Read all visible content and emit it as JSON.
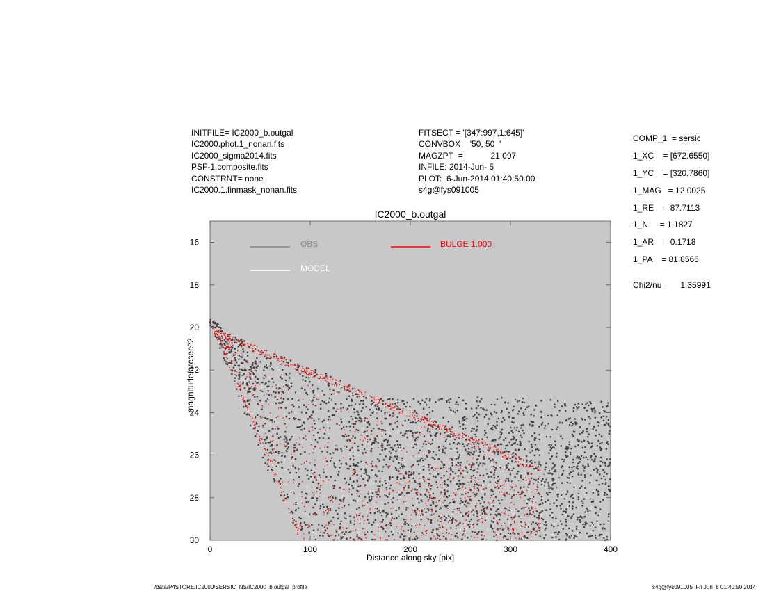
{
  "header_left": [
    "INITFILE= IC2000_b.outgal",
    "IC2000.phot.1_nonan.fits",
    "IC2000_sigma2014.fits",
    "PSF-1.composite.fits",
    "CONSTRNT= none",
    "IC2000.1.finmask_nonan.fits"
  ],
  "header_mid": [
    "FITSECT = '[347:997,1:645]'",
    "CONVBOX = '50, 50  '",
    "MAGZPT  =            21.097",
    "INFILE: 2014-Jun- 5",
    "PLOT:  6-Jun-2014 01:40:50.00",
    "s4g@fys091005"
  ],
  "params": [
    "COMP_1  = sersic",
    "1_XC    = [672.6550]",
    "1_YC    = [320.7860]",
    "1_MAG   = 12.0025",
    "1_RE    = 87.7113",
    "1_N     = 1.1827",
    "1_AR    = 0.1718",
    "1_PA    = 81.8566"
  ],
  "chi2": "Chi2/nu=      1.35991",
  "footer_left": "/data/P4STORE/IC2000/SERSIC_NS/IC2000_b.outgal_profile",
  "footer_right": "s4g@fys091005  Fri Jun  6 01:40:50 2014",
  "chart_data": {
    "type": "scatter",
    "title": "IC2000_b.outgal",
    "xlabel": "Distance along sky [pix]",
    "ylabel": "magnitude/arcsec^2",
    "xlim": [
      0,
      400
    ],
    "ylim": [
      30,
      15
    ],
    "x_ticks": [
      0,
      100,
      200,
      300,
      400
    ],
    "y_ticks": [
      16,
      18,
      20,
      22,
      24,
      26,
      28,
      30
    ],
    "background": "#c8c8c8",
    "grid": false,
    "legend": [
      {
        "label": "OBS",
        "color": "#888888"
      },
      {
        "label": "MODEL",
        "color": "#ffffff"
      },
      {
        "label": "BULGE  1.000",
        "color": "#ff0000"
      }
    ],
    "series": [
      {
        "name": "OBS",
        "color": "#444444",
        "envelope": {
          "upper_edge": [
            [
              2,
              19.6
            ],
            [
              20,
              20.3
            ],
            [
              60,
              21.2
            ],
            [
              100,
              21.8
            ],
            [
              130,
              22.4
            ],
            [
              160,
              23.4
            ],
            [
              200,
              23.2
            ],
            [
              300,
              23.3
            ],
            [
              400,
              23.5
            ]
          ],
          "lower_edge": [
            [
              2,
              20.0
            ],
            [
              30,
              23.5
            ],
            [
              60,
              27.0
            ],
            [
              90,
              30.0
            ]
          ]
        }
      },
      {
        "name": "MODEL",
        "color": "#ffffff",
        "envelope": {
          "upper_edge": [
            [
              3,
              20.0
            ],
            [
              330,
              26.5
            ]
          ],
          "lower_edge": [
            [
              3,
              20.0
            ],
            [
              90,
              30.0
            ]
          ]
        }
      },
      {
        "name": "BULGE  1.000",
        "color": "#ff0000",
        "envelope": {
          "upper_edge": [
            [
              3,
              20.0
            ],
            [
              330,
              26.5
            ]
          ],
          "lower_edge": [
            [
              3,
              20.0
            ],
            [
              90,
              30.0
            ]
          ]
        }
      }
    ]
  }
}
